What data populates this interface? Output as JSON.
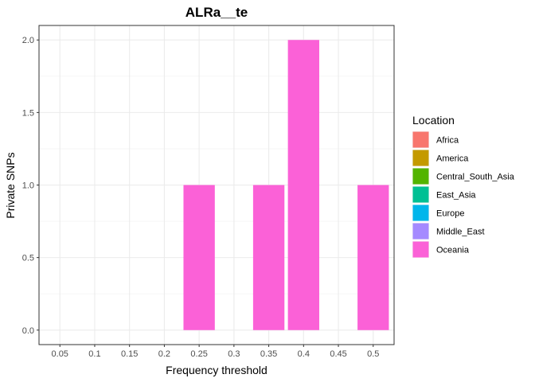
{
  "chart_data": {
    "type": "bar",
    "title": "ALRa__te",
    "xlabel": "Frequency threshold",
    "ylabel": "Private SNPs",
    "categories": [
      "0.05",
      "0.1",
      "0.15",
      "0.2",
      "0.25",
      "0.3",
      "0.35",
      "0.4",
      "0.45",
      "0.5"
    ],
    "yticks": [
      "0.0",
      "0.5",
      "1.0",
      "1.5",
      "2.0"
    ],
    "ylim": [
      -0.1,
      2.1
    ],
    "series": [
      {
        "name": "Africa",
        "color": "#F8766D",
        "values": [
          0,
          0,
          0,
          0,
          0,
          0,
          0,
          0,
          0,
          0
        ]
      },
      {
        "name": "America",
        "color": "#C49A00",
        "values": [
          0,
          0,
          0,
          0,
          0,
          0,
          0,
          0,
          0,
          0
        ]
      },
      {
        "name": "Central_South_Asia",
        "color": "#53B400",
        "values": [
          0,
          0,
          0,
          0,
          0,
          0,
          0,
          0,
          0,
          0
        ]
      },
      {
        "name": "East_Asia",
        "color": "#00C094",
        "values": [
          0,
          0,
          0,
          0,
          0,
          0,
          0,
          0,
          0,
          0
        ]
      },
      {
        "name": "Europe",
        "color": "#00B6EB",
        "values": [
          0,
          0,
          0,
          0,
          0,
          0,
          0,
          0,
          0,
          0
        ]
      },
      {
        "name": "Middle_East",
        "color": "#A58AFF",
        "values": [
          0,
          0,
          0,
          0,
          0,
          0,
          0,
          0,
          0,
          0
        ]
      },
      {
        "name": "Oceania",
        "color": "#FB61D7",
        "values": [
          0,
          0,
          0,
          0,
          1,
          0,
          1,
          2,
          0,
          1
        ]
      }
    ],
    "legend": {
      "title": "Location",
      "position": "right"
    },
    "grid": true
  }
}
